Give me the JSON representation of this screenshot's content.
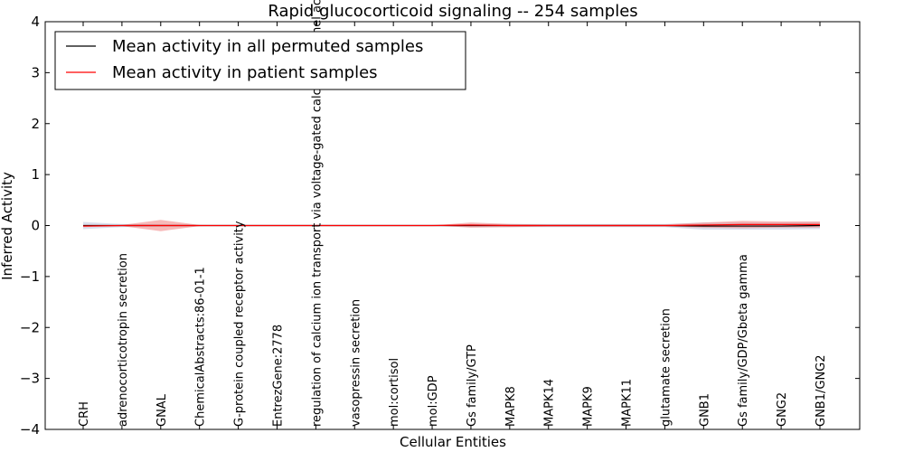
{
  "chart_data": {
    "type": "line",
    "title": "Rapid glucocorticoid signaling -- 254 samples",
    "xlabel": "Cellular Entities",
    "ylabel": "Inferred Activity",
    "ylim": [
      -4,
      4
    ],
    "yticks": [
      4,
      3,
      2,
      1,
      0,
      -1,
      -2,
      -3,
      -4
    ],
    "ytick_labels": [
      "4",
      "3",
      "2",
      "1",
      "0",
      "−1",
      "−2",
      "−3",
      "−4"
    ],
    "grid": false,
    "legend_position": "top-left",
    "categories": [
      "CRH",
      "adrenocorticotropin secretion",
      "GNAL",
      "ChemicalAbstracts:86-01-1",
      "G-protein coupled receptor activity",
      "EntrezGene:2778",
      "regulation of calcium ion transport via voltage-gated calcium channel activity",
      "vasopressin secretion",
      "mol:cortisol",
      "mol:GDP",
      "Gs family/GTP",
      "MAPK8",
      "MAPK14",
      "MAPK9",
      "MAPK11",
      "glutamate secretion",
      "GNB1",
      "Gs family/GDP/Gbeta gamma",
      "GNG2",
      "GNB1/GNG2"
    ],
    "series": [
      {
        "name": "Mean activity in all permuted samples",
        "color": "#000000",
        "band_color": "#b0b8d8",
        "values": [
          0.0,
          0.0,
          0.0,
          0.0,
          0.0,
          0.0,
          0.0,
          0.0,
          0.0,
          0.0,
          0.0,
          0.0,
          0.0,
          0.0,
          0.0,
          0.0,
          -0.01,
          -0.01,
          -0.01,
          0.0
        ],
        "band": [
          0.07,
          0.03,
          0.02,
          0.01,
          0.01,
          0.01,
          0.01,
          0.01,
          0.01,
          0.01,
          0.03,
          0.03,
          0.03,
          0.03,
          0.03,
          0.03,
          0.07,
          0.07,
          0.07,
          0.07
        ]
      },
      {
        "name": "Mean activity in patient samples",
        "color": "#ff0000",
        "band_color": "#f08080",
        "values": [
          -0.01,
          0.0,
          0.0,
          0.0,
          0.0,
          0.0,
          0.0,
          0.0,
          0.0,
          0.0,
          0.01,
          0.0,
          0.0,
          0.0,
          0.0,
          0.0,
          0.01,
          0.02,
          0.02,
          0.02
        ],
        "band": [
          0.02,
          0.01,
          0.11,
          0.01,
          0.0,
          0.0,
          0.0,
          0.0,
          0.0,
          0.0,
          0.05,
          0.03,
          0.02,
          0.02,
          0.02,
          0.02,
          0.05,
          0.07,
          0.06,
          0.06
        ]
      }
    ]
  }
}
